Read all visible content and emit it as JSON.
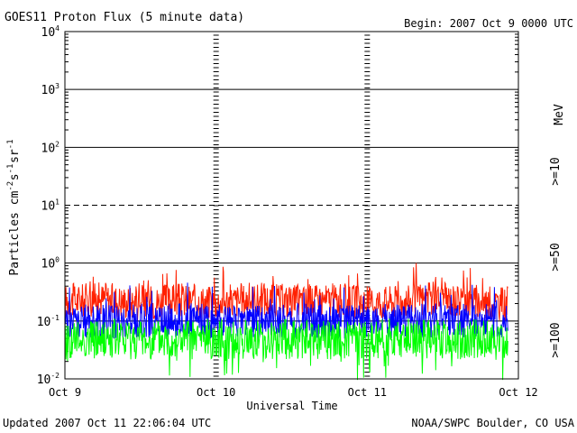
{
  "header": {
    "title": "GOES11 Proton Flux (5 minute data)",
    "begin": "Begin: 2007 Oct 9 0000 UTC"
  },
  "footer": {
    "updated": "Updated 2007 Oct 11 22:06:04 UTC",
    "credit": "NOAA/SWPC Boulder, CO USA"
  },
  "chart_data": {
    "type": "line",
    "title": "GOES11 Proton Flux (5 minute data)",
    "xlabel": "Universal Time",
    "ylabel": "Particles cm-2s-1sr-1",
    "y_scale": "log",
    "ylim": [
      0.01,
      10000
    ],
    "y_ticks": [
      {
        "base": "10",
        "exp": "4"
      },
      {
        "base": "10",
        "exp": "3"
      },
      {
        "base": "10",
        "exp": "2"
      },
      {
        "base": "10",
        "exp": "1"
      },
      {
        "base": "10",
        "exp": "0"
      },
      {
        "base": "10",
        "exp": "-1"
      },
      {
        "base": "10",
        "exp": "-2"
      }
    ],
    "x_ticks": [
      "Oct 9",
      "Oct 10",
      "Oct 11",
      "Oct 12"
    ],
    "xlim_days": [
      0,
      3
    ],
    "units_label": "MeV",
    "series": [
      {
        "name": ">=10",
        "color": "#ff2000",
        "x_days": [
          0,
          0.25,
          0.5,
          0.75,
          1.0,
          1.25,
          1.5,
          1.75,
          2.0,
          2.25,
          2.5,
          2.75,
          2.93
        ],
        "values": [
          0.22,
          0.24,
          0.2,
          0.23,
          0.21,
          0.24,
          0.22,
          0.23,
          0.21,
          0.22,
          0.24,
          0.21,
          0.2
        ]
      },
      {
        "name": ">=50",
        "color": "#0000ff",
        "x_days": [
          0,
          0.25,
          0.5,
          0.75,
          1.0,
          1.25,
          1.5,
          1.75,
          2.0,
          2.25,
          2.5,
          2.75,
          2.93
        ],
        "values": [
          0.1,
          0.095,
          0.1,
          0.105,
          0.098,
          0.1,
          0.102,
          0.097,
          0.1,
          0.1,
          0.103,
          0.098,
          0.1
        ]
      },
      {
        "name": ">=100",
        "color": "#00ff00",
        "x_days": [
          0,
          0.25,
          0.5,
          0.75,
          1.0,
          1.25,
          1.5,
          1.75,
          2.0,
          2.25,
          2.5,
          2.75,
          2.93
        ],
        "values": [
          0.045,
          0.05,
          0.048,
          0.046,
          0.05,
          0.047,
          0.049,
          0.046,
          0.048,
          0.05,
          0.047,
          0.049,
          0.046
        ]
      }
    ],
    "grid": true
  }
}
